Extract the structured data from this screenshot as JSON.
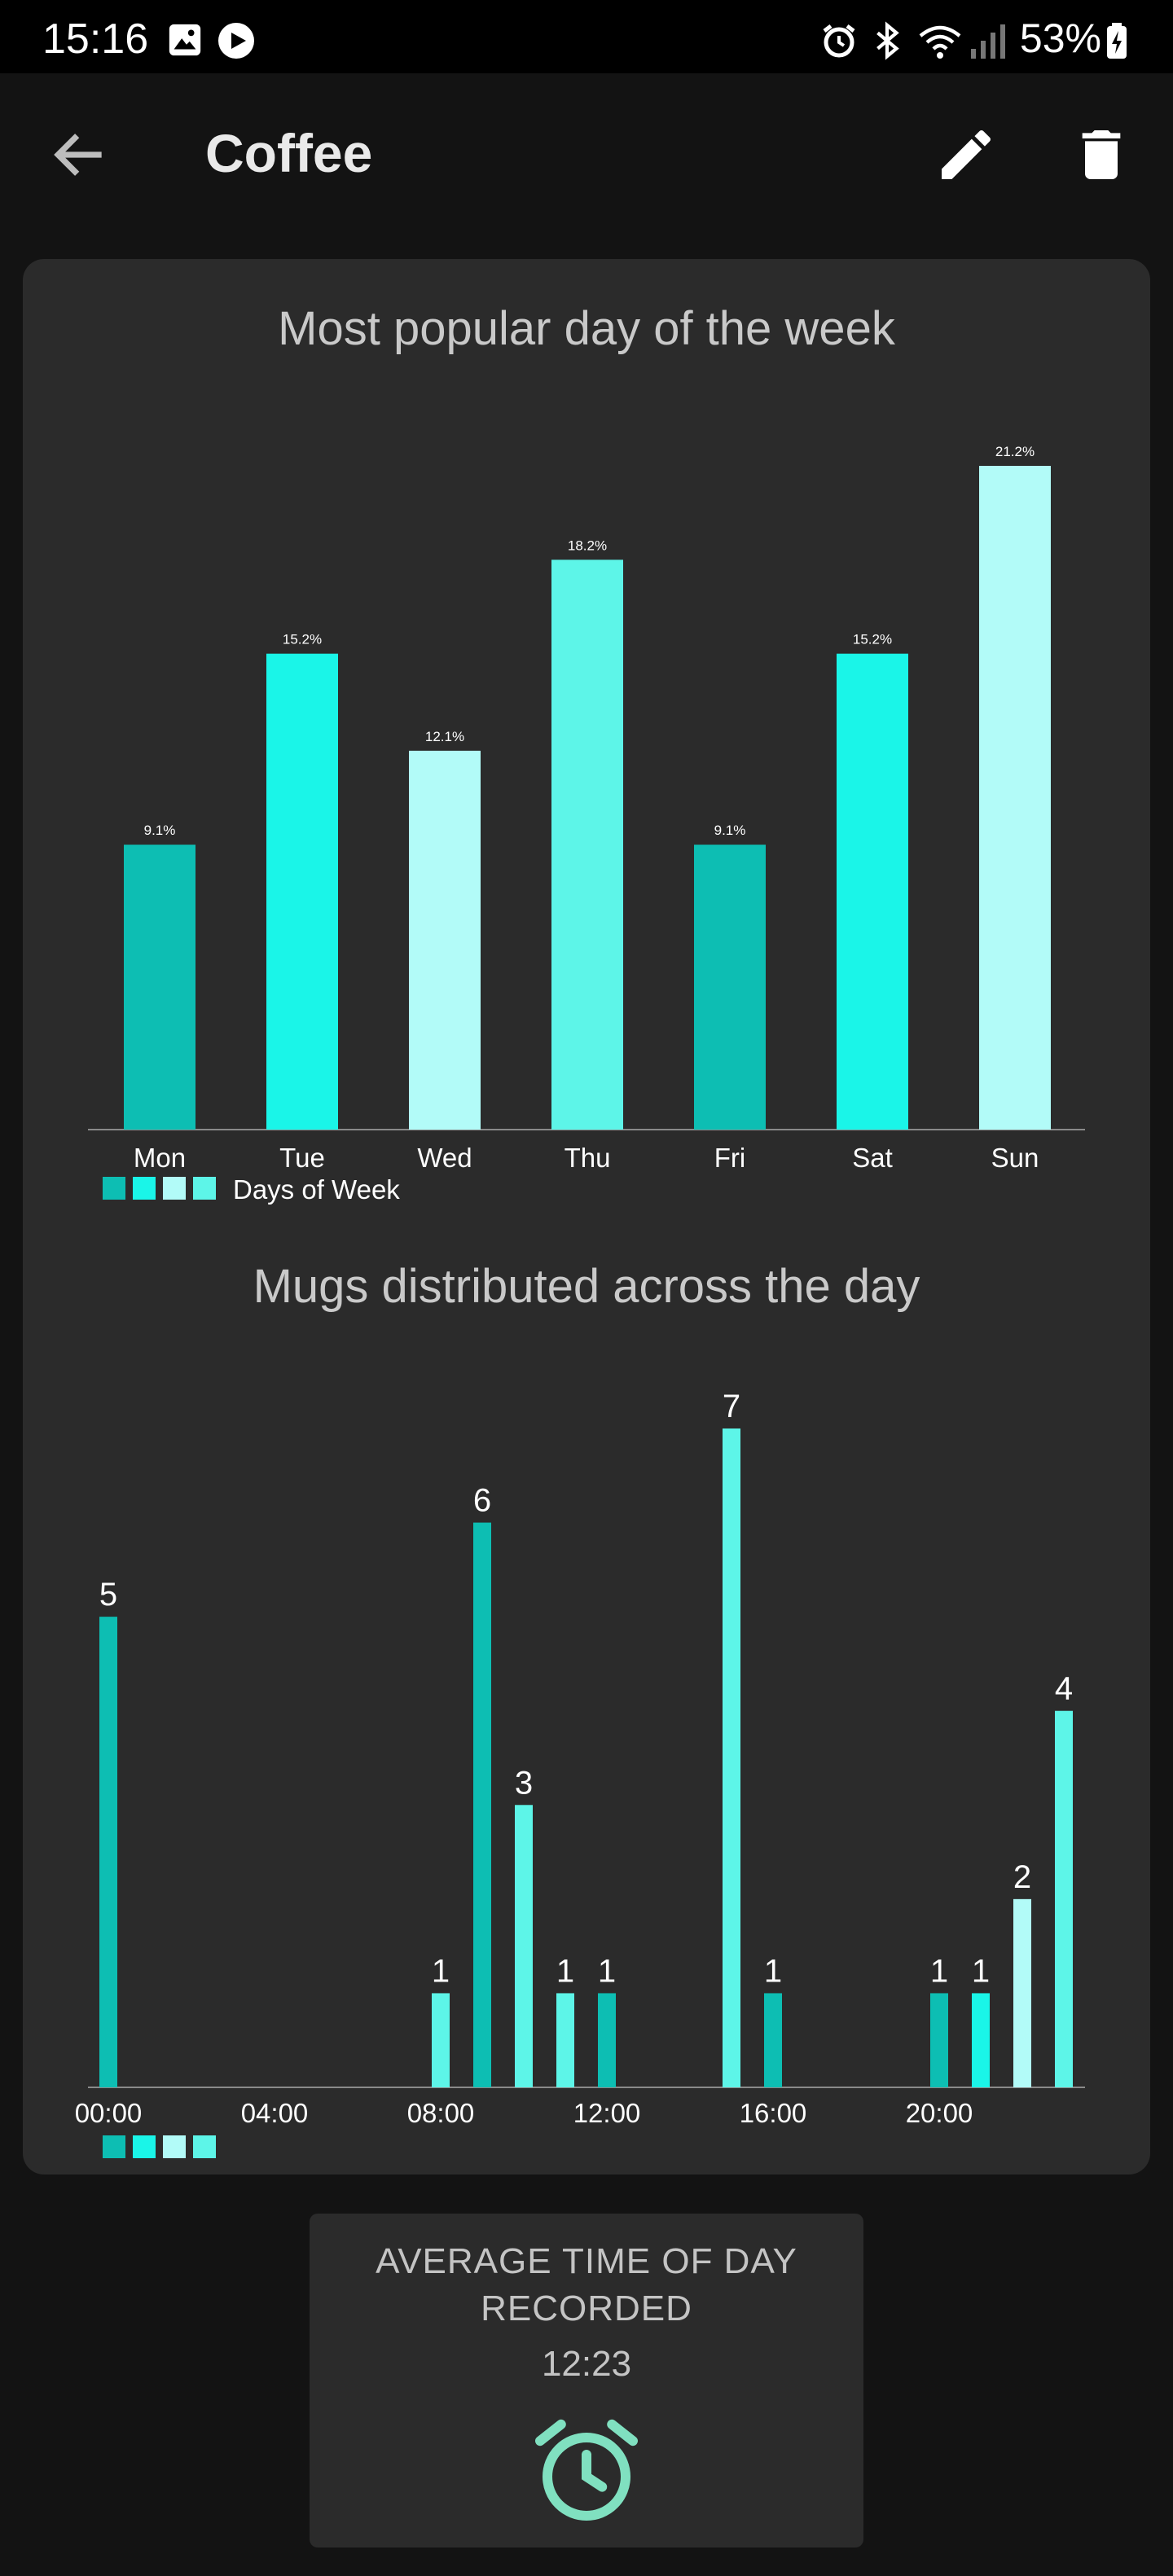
{
  "status_bar": {
    "time": "15:16",
    "battery": "53%",
    "icons": [
      "gallery-icon",
      "play-icon",
      "alarm-icon",
      "bluetooth-icon",
      "wifi-icon",
      "signal-icon",
      "battery-icon"
    ]
  },
  "app_bar": {
    "title": "Coffee",
    "icons": [
      "back-arrow-icon",
      "edit-pencil-icon",
      "delete-trash-icon"
    ]
  },
  "colors": {
    "background": "#131313",
    "card": "#2b2b2b",
    "teal_dark": "#0dbeb3",
    "teal_bright": "#1af5e8",
    "teal_pale": "#b2fbf8",
    "teal_mid": "#5df5e8",
    "accent_mint": "#80e0c0"
  },
  "chart_data": [
    {
      "type": "bar",
      "title": "Most popular day of the week",
      "categories": [
        "Mon",
        "Tue",
        "Wed",
        "Thu",
        "Fri",
        "Sat",
        "Sun"
      ],
      "values": [
        9.1,
        15.2,
        12.1,
        18.2,
        9.1,
        15.2,
        21.2
      ],
      "value_labels": [
        "9.1%",
        "15.2%",
        "12.1%",
        "18.2%",
        "9.1%",
        "15.2%",
        "21.2%"
      ],
      "bar_colors": [
        "#0dbeb3",
        "#1af5e8",
        "#b2fbf8",
        "#5df5e8",
        "#0dbeb3",
        "#1af5e8",
        "#b2fbf8"
      ],
      "legend": {
        "label": "Days of Week",
        "position": "bottom-left"
      },
      "ylim": [
        0,
        21.2
      ],
      "grid": false
    },
    {
      "type": "bar",
      "title": "Mugs distributed across the day",
      "x": [
        0,
        8,
        9,
        10,
        11,
        12,
        15,
        16,
        20,
        21,
        22,
        23
      ],
      "values": [
        5,
        1,
        6,
        3,
        1,
        1,
        7,
        1,
        1,
        1,
        2,
        4
      ],
      "value_labels": [
        "5",
        "1",
        "6",
        "3",
        "1",
        "1",
        "7",
        "1",
        "1",
        "1",
        "2",
        "4"
      ],
      "bar_colors": [
        "#0dbeb3",
        "#5df5e8",
        "#0dbeb3",
        "#5df5e8",
        "#5df5e8",
        "#0dbeb3",
        "#5df5e8",
        "#0dbeb3",
        "#0dbeb3",
        "#1af5e8",
        "#b2fbf8",
        "#5df5e8"
      ],
      "xrange": [
        0,
        23
      ],
      "tick_values": [
        0,
        4,
        8,
        12,
        16,
        20
      ],
      "tick_labels": [
        "00:00",
        "04:00",
        "08:00",
        "12:00",
        "16:00",
        "20:00"
      ],
      "ylim": [
        0,
        7
      ],
      "legend": {
        "label": "",
        "position": "bottom-left"
      },
      "grid": false
    }
  ],
  "summary": {
    "label": "AVERAGE TIME OF DAY RECORDED",
    "value": "12:23",
    "icon": "alarm-clock-icon"
  }
}
